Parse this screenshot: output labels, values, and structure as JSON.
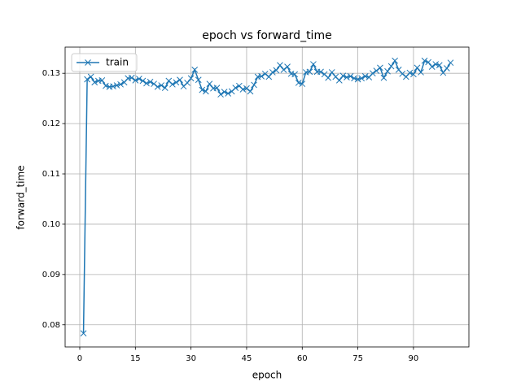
{
  "chart_data": {
    "type": "line",
    "title": "epoch vs forward_time",
    "xlabel": "epoch",
    "ylabel": "forward_time",
    "x": [
      1,
      2,
      3,
      4,
      5,
      6,
      7,
      8,
      9,
      10,
      11,
      12,
      13,
      14,
      15,
      16,
      17,
      18,
      19,
      20,
      21,
      22,
      23,
      24,
      25,
      26,
      27,
      28,
      29,
      30,
      31,
      32,
      33,
      34,
      35,
      36,
      37,
      38,
      39,
      40,
      41,
      42,
      43,
      44,
      45,
      46,
      47,
      48,
      49,
      50,
      51,
      52,
      53,
      54,
      55,
      56,
      57,
      58,
      59,
      60,
      61,
      62,
      63,
      64,
      65,
      66,
      67,
      68,
      69,
      70,
      71,
      72,
      73,
      74,
      75,
      76,
      77,
      78,
      79,
      80,
      81,
      82,
      83,
      84,
      85,
      86,
      87,
      88,
      89,
      90,
      91,
      92,
      93,
      94,
      95,
      96,
      97,
      98,
      99,
      100
    ],
    "series": [
      {
        "name": "train",
        "color": "#1f77b4",
        "marker": "x",
        "values": [
          0.0783,
          0.1288,
          0.1293,
          0.1282,
          0.1285,
          0.1286,
          0.1275,
          0.1273,
          0.1274,
          0.1276,
          0.1278,
          0.1282,
          0.129,
          0.1291,
          0.1286,
          0.1289,
          0.1285,
          0.128,
          0.1283,
          0.1279,
          0.1273,
          0.1276,
          0.1271,
          0.1285,
          0.1278,
          0.1282,
          0.1287,
          0.1274,
          0.1281,
          0.129,
          0.1307,
          0.1287,
          0.1267,
          0.1264,
          0.1279,
          0.127,
          0.1271,
          0.1258,
          0.1263,
          0.126,
          0.1264,
          0.1271,
          0.1275,
          0.1268,
          0.127,
          0.1264,
          0.1277,
          0.1293,
          0.1294,
          0.1299,
          0.1293,
          0.1302,
          0.1306,
          0.1316,
          0.1307,
          0.1313,
          0.1299,
          0.1298,
          0.1281,
          0.1279,
          0.1302,
          0.1303,
          0.1318,
          0.1303,
          0.1303,
          0.1298,
          0.1291,
          0.1302,
          0.1293,
          0.1286,
          0.1295,
          0.1292,
          0.1294,
          0.129,
          0.1288,
          0.129,
          0.1294,
          0.1292,
          0.13,
          0.1305,
          0.1311,
          0.1291,
          0.1304,
          0.1314,
          0.1325,
          0.1307,
          0.1299,
          0.1293,
          0.1301,
          0.1298,
          0.1311,
          0.1302,
          0.1325,
          0.1322,
          0.1313,
          0.1318,
          0.1316,
          0.1301,
          0.131,
          0.1321
        ]
      }
    ],
    "xlim": [
      -3.95,
      104.95
    ],
    "ylim": [
      0.0756,
      0.1352
    ],
    "xticks": [
      0,
      15,
      30,
      45,
      60,
      75,
      90
    ],
    "yticks": [
      0.08,
      0.09,
      {
        "value": 0.1,
        "label": "0.10"
      },
      0.11,
      0.12,
      0.13
    ],
    "grid": true,
    "legend": "upper left"
  }
}
